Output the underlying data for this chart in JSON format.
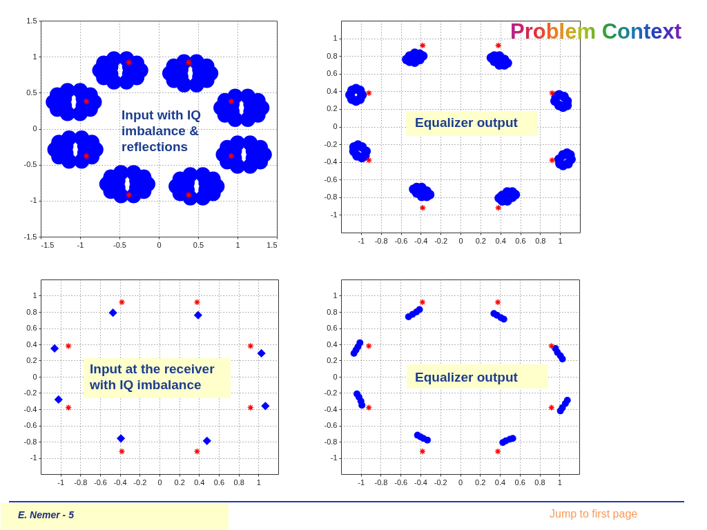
{
  "chart_data": [
    {
      "type": "scatter",
      "xlim": [
        -1.5,
        1.5
      ],
      "ylim": [
        -1.5,
        1.5
      ],
      "xticks": [
        -1.5,
        -1,
        -0.5,
        0,
        0.5,
        1,
        1.5
      ],
      "yticks": [
        -1.5,
        -1,
        -0.5,
        0,
        0.5,
        1,
        1.5
      ],
      "grid": true,
      "annotations": [
        "Input with IQ imbalance & reflections"
      ],
      "series": [
        {
          "color": "#0000ff",
          "marker": "circle",
          "x": [
            -0.23,
            -0.28,
            -0.41,
            -0.57,
            -0.7,
            -0.75,
            -0.7,
            -0.57,
            -0.41,
            -0.28,
            -0.37,
            -0.61,
            -0.61,
            -0.37,
            0.66,
            0.61,
            0.48,
            0.32,
            0.19,
            0.14,
            0.19,
            0.32,
            0.48,
            0.61,
            0.52,
            0.28,
            0.28,
            0.52,
            -0.82,
            -0.87,
            -1.0,
            -1.16,
            -1.29,
            -1.34,
            -1.29,
            -1.16,
            -1.0,
            -0.87,
            -0.96,
            -1.2,
            -1.2,
            -0.96,
            1.31,
            1.26,
            1.13,
            0.97,
            0.84,
            0.79,
            0.84,
            0.97,
            1.13,
            1.26,
            1.17,
            0.93,
            0.93,
            1.17,
            -0.8,
            -0.85,
            -0.98,
            -1.14,
            -1.27,
            -1.32,
            -1.27,
            -1.14,
            -0.98,
            -0.85,
            -0.94,
            -1.18,
            -1.18,
            -0.94,
            1.34,
            1.29,
            1.16,
            1.0,
            0.87,
            0.82,
            0.87,
            1.0,
            1.16,
            1.29,
            1.2,
            0.96,
            0.96,
            1.2,
            -0.14,
            -0.19,
            -0.32,
            -0.48,
            -0.61,
            -0.66,
            -0.61,
            -0.48,
            -0.32,
            -0.19,
            -0.28,
            -0.52,
            -0.52,
            -0.28,
            0.74,
            0.69,
            0.56,
            0.4,
            0.27,
            0.22,
            0.27,
            0.4,
            0.56,
            0.69,
            0.6,
            0.36,
            0.36,
            0.6
          ],
          "values": [
            0.81,
            0.91,
            0.97,
            0.97,
            0.91,
            0.81,
            0.71,
            0.65,
            0.65,
            0.71,
            0.86,
            0.86,
            0.76,
            0.76,
            0.77,
            0.87,
            0.93,
            0.93,
            0.87,
            0.77,
            0.67,
            0.61,
            0.61,
            0.67,
            0.82,
            0.82,
            0.72,
            0.72,
            0.37,
            0.47,
            0.53,
            0.53,
            0.47,
            0.37,
            0.27,
            0.21,
            0.21,
            0.27,
            0.42,
            0.42,
            0.32,
            0.32,
            0.29,
            0.39,
            0.45,
            0.45,
            0.39,
            0.29,
            0.19,
            0.13,
            0.13,
            0.19,
            0.34,
            0.34,
            0.24,
            0.24,
            -0.29,
            -0.19,
            -0.13,
            -0.13,
            -0.19,
            -0.29,
            -0.39,
            -0.45,
            -0.45,
            -0.39,
            -0.24,
            -0.24,
            -0.34,
            -0.34,
            -0.36,
            -0.26,
            -0.2,
            -0.2,
            -0.26,
            -0.36,
            -0.46,
            -0.52,
            -0.52,
            -0.46,
            -0.31,
            -0.31,
            -0.41,
            -0.41,
            -0.77,
            -0.67,
            -0.61,
            -0.61,
            -0.67,
            -0.77,
            -0.87,
            -0.93,
            -0.93,
            -0.87,
            -0.72,
            -0.72,
            -0.82,
            -0.82,
            -0.8,
            -0.7,
            -0.64,
            -0.64,
            -0.7,
            -0.8,
            -0.9,
            -0.96,
            -0.96,
            -0.9,
            -0.75,
            -0.75,
            -0.85,
            -0.85
          ]
        },
        {
          "color": "#ff0000",
          "marker": "cross",
          "x": [
            -0.38,
            0.38,
            -0.92,
            0.92,
            -0.92,
            0.92,
            -0.38,
            0.38
          ],
          "values": [
            0.92,
            0.92,
            0.38,
            0.38,
            -0.38,
            -0.38,
            -0.92,
            -0.92
          ]
        }
      ]
    },
    {
      "type": "scatter",
      "xlim": [
        -1.2,
        1.2
      ],
      "ylim": [
        -1.2,
        1.2
      ],
      "xticks": [
        -1,
        -0.8,
        -0.6,
        -0.4,
        -0.2,
        0,
        0.2,
        0.4,
        0.6,
        0.8,
        1
      ],
      "yticks": [
        -1,
        -0.8,
        -0.6,
        -0.4,
        -0.2,
        0,
        0.2,
        0.4,
        0.6,
        0.8,
        1
      ],
      "grid": true,
      "annotations": [
        "Equalizer output"
      ],
      "series": [
        {
          "color": "#0000ff",
          "marker": "circle",
          "x": [
            -0.38,
            -0.41,
            -0.46,
            -0.51,
            -0.54,
            -0.51,
            -0.46,
            -0.41,
            0.47,
            0.44,
            0.39,
            0.34,
            0.31,
            0.34,
            0.39,
            0.44,
            -0.99,
            -1.01,
            -1.05,
            -1.09,
            -1.11,
            -1.09,
            -1.05,
            -1.01,
            1.07,
            1.04,
            0.99,
            0.96,
            0.95,
            0.99,
            1.03,
            1.07,
            -0.95,
            -0.99,
            -1.03,
            -1.07,
            -1.07,
            -1.04,
            -0.99,
            -0.96,
            1.11,
            1.1,
            1.07,
            1.03,
            0.99,
            1.0,
            1.03,
            1.08,
            -0.31,
            -0.34,
            -0.39,
            -0.44,
            -0.47,
            -0.44,
            -0.39,
            -0.34,
            0.55,
            0.52,
            0.47,
            0.42,
            0.39,
            0.42,
            0.47,
            0.52
          ],
          "values": [
            0.8,
            0.82,
            0.83,
            0.8,
            0.76,
            0.74,
            0.73,
            0.76,
            0.72,
            0.76,
            0.8,
            0.8,
            0.78,
            0.74,
            0.7,
            0.7,
            0.36,
            0.41,
            0.43,
            0.41,
            0.36,
            0.31,
            0.29,
            0.31,
            0.29,
            0.34,
            0.36,
            0.34,
            0.29,
            0.24,
            0.22,
            0.24,
            -0.28,
            -0.23,
            -0.21,
            -0.23,
            -0.28,
            -0.33,
            -0.35,
            -0.33,
            -0.37,
            -0.32,
            -0.3,
            -0.32,
            -0.37,
            -0.42,
            -0.44,
            -0.42,
            -0.77,
            -0.73,
            -0.69,
            -0.69,
            -0.71,
            -0.75,
            -0.79,
            -0.79,
            -0.77,
            -0.74,
            -0.74,
            -0.78,
            -0.81,
            -0.84,
            -0.84,
            -0.8
          ]
        },
        {
          "color": "#ff0000",
          "marker": "cross",
          "x": [
            -0.38,
            0.38,
            -0.92,
            0.92,
            -0.92,
            0.92,
            -0.38,
            0.38
          ],
          "values": [
            0.92,
            0.92,
            0.38,
            0.38,
            -0.38,
            -0.38,
            -0.92,
            -0.92
          ]
        }
      ]
    },
    {
      "type": "scatter",
      "xlim": [
        -1.2,
        1.2
      ],
      "ylim": [
        -1.2,
        1.2
      ],
      "xticks": [
        -1,
        -0.8,
        -0.6,
        -0.4,
        -0.2,
        0,
        0.2,
        0.4,
        0.6,
        0.8,
        1
      ],
      "yticks": [
        -1,
        -0.8,
        -0.6,
        -0.4,
        -0.2,
        0,
        0.2,
        0.4,
        0.6,
        0.8,
        1
      ],
      "grid": true,
      "annotations": [
        "Input at the receiver with IQ imbalance"
      ],
      "series": [
        {
          "color": "#0000ff",
          "marker": "diamond",
          "x": [
            -0.47,
            0.39,
            -1.06,
            1.03,
            -1.02,
            1.07,
            -0.39,
            0.48
          ],
          "values": [
            0.79,
            0.76,
            0.35,
            0.29,
            -0.28,
            -0.36,
            -0.76,
            -0.79
          ]
        },
        {
          "color": "#ff0000",
          "marker": "cross",
          "x": [
            -0.38,
            0.38,
            -0.92,
            0.92,
            -0.92,
            0.92,
            -0.38,
            0.38
          ],
          "values": [
            0.92,
            0.92,
            0.38,
            0.38,
            -0.38,
            -0.38,
            -0.92,
            -0.92
          ]
        }
      ]
    },
    {
      "type": "scatter",
      "xlim": [
        -1.2,
        1.2
      ],
      "ylim": [
        -1.2,
        1.2
      ],
      "xticks": [
        -1,
        -0.8,
        -0.6,
        -0.4,
        -0.2,
        0,
        0.2,
        0.4,
        0.6,
        0.8,
        1
      ],
      "yticks": [
        -1,
        -0.8,
        -0.6,
        -0.4,
        -0.2,
        0,
        0.2,
        0.4,
        0.6,
        0.8,
        1
      ],
      "grid": true,
      "annotations": [
        "Equalizer output"
      ],
      "series": [
        {
          "color": "#0000ff",
          "marker": "circle",
          "x": [
            -0.52,
            -0.48,
            -0.44,
            -0.41,
            0.34,
            0.37,
            0.41,
            0.44,
            -1.07,
            -1.05,
            -1.03,
            -1.01,
            0.96,
            0.98,
            1.01,
            1.03,
            -1.04,
            -1.02,
            -1.0,
            -0.99,
            1.01,
            1.03,
            1.06,
            1.08,
            -0.43,
            -0.4,
            -0.37,
            -0.33,
            0.43,
            0.46,
            0.5,
            0.53
          ],
          "values": [
            0.74,
            0.77,
            0.8,
            0.83,
            0.78,
            0.76,
            0.73,
            0.71,
            0.29,
            0.33,
            0.37,
            0.42,
            0.35,
            0.3,
            0.26,
            0.22,
            -0.21,
            -0.25,
            -0.3,
            -0.35,
            -0.42,
            -0.38,
            -0.33,
            -0.29,
            -0.72,
            -0.74,
            -0.76,
            -0.78,
            -0.81,
            -0.79,
            -0.77,
            -0.76
          ]
        },
        {
          "color": "#ff0000",
          "marker": "cross",
          "x": [
            -0.38,
            0.38,
            -0.92,
            0.92,
            -0.92,
            0.92,
            -0.38,
            0.38
          ],
          "values": [
            0.92,
            0.92,
            0.38,
            0.38,
            -0.38,
            -0.38,
            -0.92,
            -0.92
          ]
        }
      ]
    },
    {
      "type": "other",
      "title": "Problem Context",
      "annotations": [
        "E. Nemer - 5",
        "Jump to first page"
      ]
    }
  ]
}
